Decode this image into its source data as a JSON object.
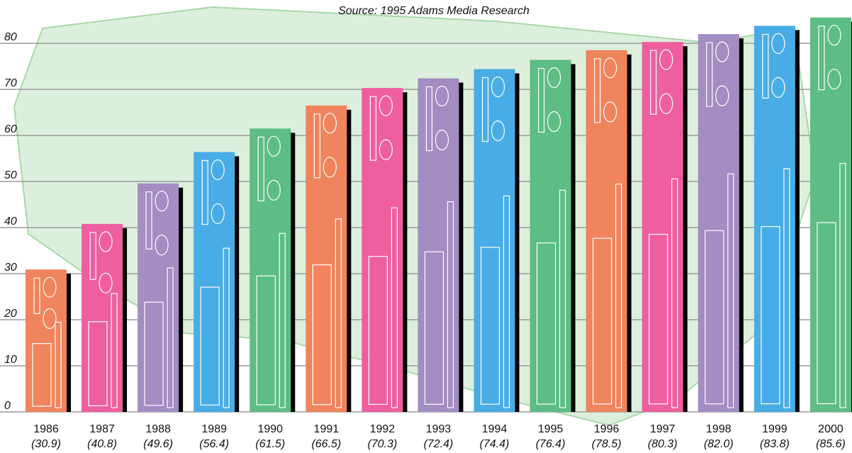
{
  "chart_data": {
    "type": "bar",
    "subtitle": "Source: 1995 Adams Media Research",
    "categories": [
      "1986",
      "1987",
      "1988",
      "1989",
      "1990",
      "1991",
      "1992",
      "1993",
      "1994",
      "1995",
      "1996",
      "1997",
      "1998",
      "1999",
      "2000"
    ],
    "values": [
      30.9,
      40.8,
      49.6,
      56.4,
      61.5,
      66.5,
      70.3,
      72.4,
      74.4,
      76.4,
      78.5,
      80.3,
      82.0,
      83.8,
      85.6
    ],
    "value_labels": [
      "(30.9)",
      "(40.8)",
      "(49.6)",
      "(56.4)",
      "(61.5)",
      "(66.5)",
      "(70.3)",
      "(72.4)",
      "(74.4)",
      "(76.4)",
      "(78.5)",
      "(80.3)",
      "(82.0)",
      "(83.8)",
      "(85.6)"
    ],
    "colors": [
      "#f0845c",
      "#ee5f9f",
      "#a38dc2",
      "#48ade6",
      "#5dbd84",
      "#f0845c",
      "#ee5f9f",
      "#a38dc2",
      "#48ade6",
      "#5dbd84",
      "#f0845c",
      "#ee5f9f",
      "#a38dc2",
      "#48ade6",
      "#5dbd84"
    ],
    "ylim": [
      0,
      89.4
    ],
    "yticks": [
      0,
      10,
      20,
      30,
      40,
      50,
      60,
      70,
      80
    ],
    "grid": true
  }
}
